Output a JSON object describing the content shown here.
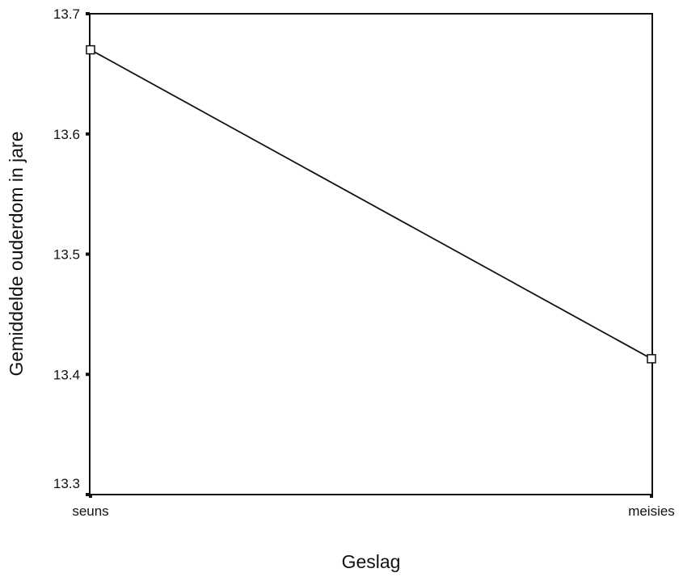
{
  "chart_data": {
    "type": "line",
    "title": "",
    "xlabel": "Geslag",
    "ylabel": "Gemiddelde ouderdom in jare",
    "categories": [
      "seuns",
      "meisies"
    ],
    "series": [
      {
        "values": [
          13.67,
          13.413
        ],
        "marker": "square",
        "color": "#111111"
      }
    ],
    "ylim": [
      13.3,
      13.7
    ],
    "yticks": [
      13.3,
      13.4,
      13.5,
      13.6,
      13.7
    ],
    "ytick_labels": [
      "13.3",
      "13.4",
      "13.5",
      "13.6",
      "13.7"
    ],
    "grid": false,
    "legend": "none",
    "frame": "box"
  }
}
